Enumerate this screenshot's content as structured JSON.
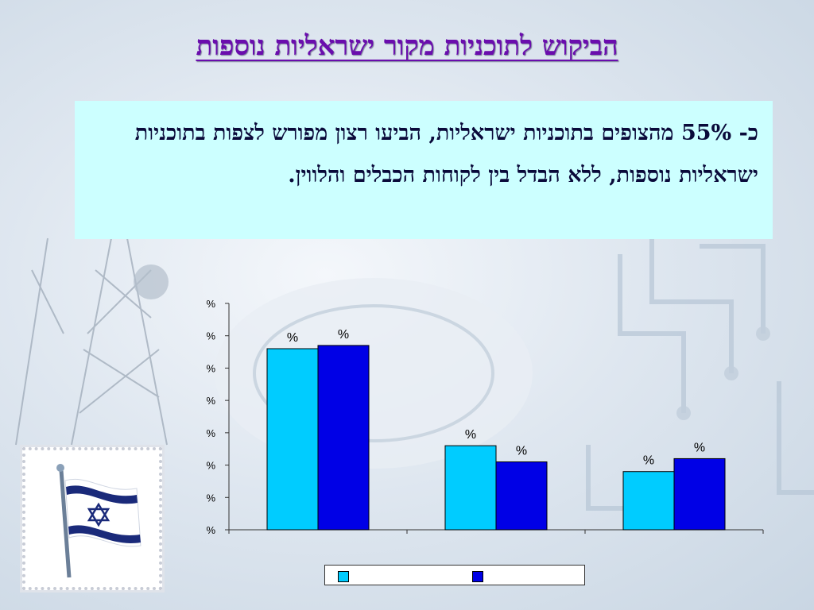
{
  "title": "הביקוש לתוכניות מקור ישראליות נוספות",
  "body_text": "כ- 55% מהצופים בתוכניות ישראליות, הביעו רצון מפורש לצפות בתוכניות ישראליות נוספות, ללא הבדל בין לקוחות הכבלים והלווין.",
  "colors": {
    "title": "#6a0dad",
    "textbox_bg": "#ccffff",
    "series_light": "#00ccff",
    "series_dark": "#0000e6"
  },
  "chart_data": {
    "type": "bar",
    "categories": [
      "",
      "",
      ""
    ],
    "y_tick_labels": [
      "%",
      "%",
      "%",
      "%",
      "%",
      "%",
      "%",
      "%"
    ],
    "ylim": [
      0,
      70
    ],
    "y_ticks": [
      0,
      10,
      20,
      30,
      40,
      50,
      60,
      70
    ],
    "series": [
      {
        "values": [
          56,
          26,
          18
        ],
        "labels": [
          "%",
          "%",
          "%"
        ],
        "color": "#00ccff"
      },
      {
        "values": [
          57,
          21,
          22
        ],
        "labels": [
          "%",
          "%",
          "%"
        ],
        "color": "#0000e6"
      }
    ],
    "legend": "bottom",
    "grid": false
  }
}
